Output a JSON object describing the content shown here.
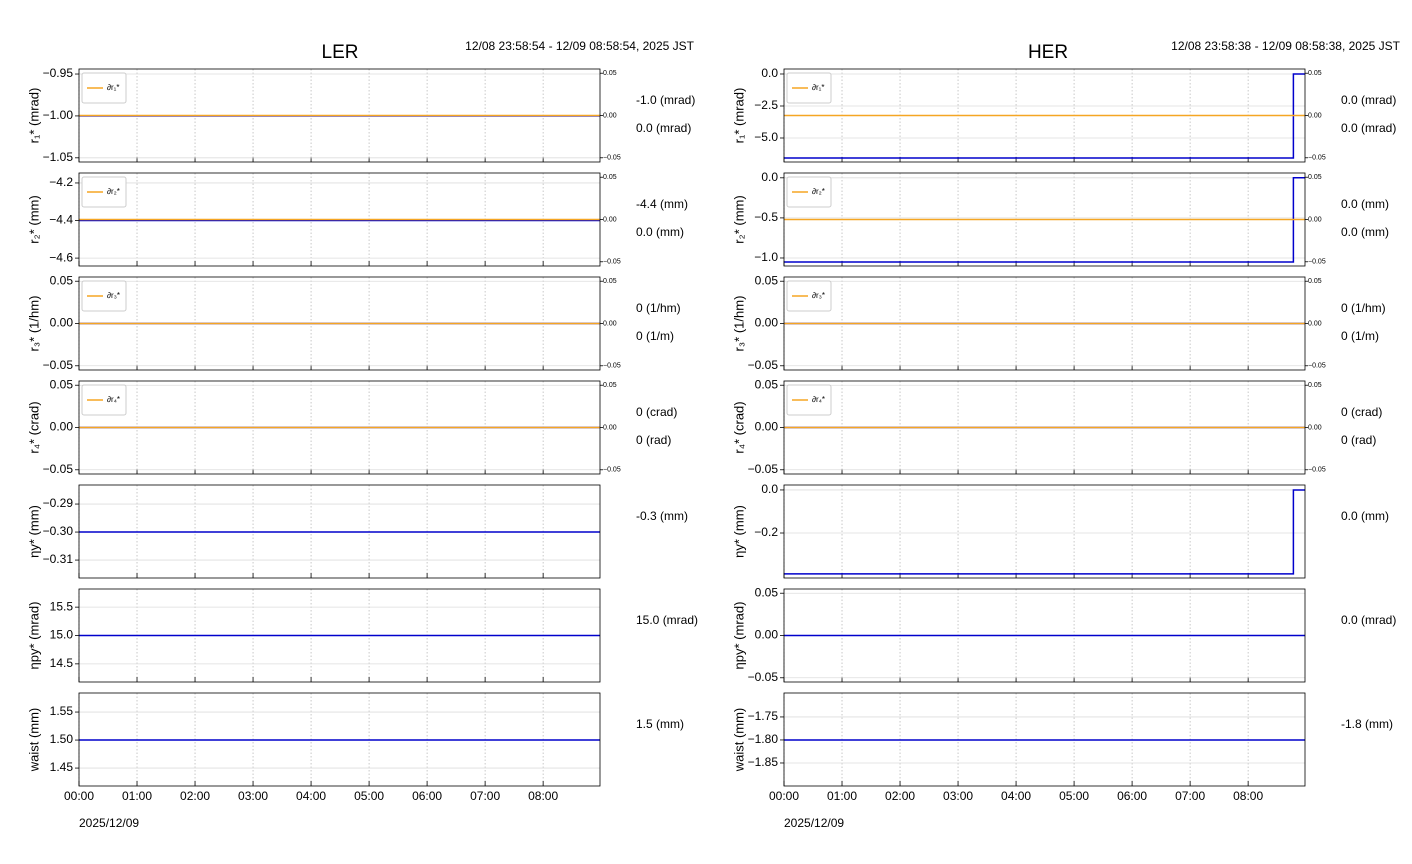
{
  "chart_data": [
    {
      "type": "line",
      "title": "LER",
      "subtitle": "12/08 23:58:54 - 12/09 08:58:54, 2025 JST",
      "xlabel": "2025/12/09",
      "xlim": [
        0,
        8.98
      ],
      "xticks": [
        {
          "value": 0,
          "label": "00:00"
        },
        {
          "value": 1,
          "label": "01:00"
        },
        {
          "value": 2,
          "label": "02:00"
        },
        {
          "value": 3,
          "label": "03:00"
        },
        {
          "value": 4,
          "label": "04:00"
        },
        {
          "value": 5,
          "label": "05:00"
        },
        {
          "value": 6,
          "label": "06:00"
        },
        {
          "value": 7,
          "label": "07:00"
        },
        {
          "value": 8,
          "label": "08:00"
        }
      ],
      "panels": [
        {
          "ylabel": "r₁* (mrad)",
          "ylim": [
            -1.055,
            -0.944
          ],
          "yticks": [
            {
              "value": -0.95,
              "label": "−0.95"
            },
            {
              "value": -1,
              "label": "−1.00"
            },
            {
              "value": -1.05,
              "label": "−1.05"
            }
          ],
          "y2lim": [
            -0.055,
            0.055
          ],
          "y2ticks": [
            0.05,
            {
              "value": 0,
              "label": "0.00"
            },
            {
              "value": -0.05,
              "label": "−0.05"
            }
          ],
          "series": [
            {
              "color": "#0000cc",
              "x": [
                0,
                8.98
              ],
              "values": [
                -1,
                -1
              ]
            },
            {
              "name": "∂r₁*",
              "color": "#f5a623",
              "axis": "y2",
              "x": [
                0,
                8.98
              ],
              "values": [
                0,
                0
              ]
            }
          ],
          "notes": [
            {
              "text": "-1.0 (mrad)",
              "color": "#0000cc"
            },
            {
              "text": "0.0 (mrad)",
              "color": "#f5a623"
            }
          ]
        },
        {
          "ylabel": "r₂* (mm)",
          "ylim": [
            -4.642,
            -4.147
          ],
          "yticks": [
            {
              "value": -4.2,
              "label": "−4.2"
            },
            {
              "value": -4.4,
              "label": "−4.4"
            },
            {
              "value": -4.6,
              "label": "−4.6"
            }
          ],
          "y2lim": [
            -0.055,
            0.055
          ],
          "y2ticks": [
            0.05,
            {
              "value": 0,
              "label": "0.00"
            },
            {
              "value": -0.05,
              "label": "−0.05"
            }
          ],
          "series": [
            {
              "color": "#0000cc",
              "x": [
                0,
                8.98
              ],
              "values": [
                -4.4,
                -4.4
              ]
            },
            {
              "name": "∂r₂*",
              "color": "#f5a623",
              "axis": "y2",
              "x": [
                0,
                8.98
              ],
              "values": [
                0,
                0
              ]
            }
          ],
          "notes": [
            {
              "text": "-4.4 (mm)",
              "color": "#0000cc"
            },
            {
              "text": "0.0 (mm)",
              "color": "#f5a623"
            }
          ]
        },
        {
          "ylabel": "r₃* (1/hm)",
          "ylim": [
            -0.055,
            0.055
          ],
          "yticks": [
            0.05,
            {
              "value": 0,
              "label": "0.00"
            },
            {
              "value": -0.05,
              "label": "−0.05"
            }
          ],
          "y2lim": [
            -0.055,
            0.055
          ],
          "y2ticks": [
            0.05,
            {
              "value": 0,
              "label": "0.00"
            },
            {
              "value": -0.05,
              "label": "−0.05"
            }
          ],
          "series": [
            {
              "color": "#0000cc",
              "x": [
                0,
                8.98
              ],
              "values": [
                0,
                0
              ]
            },
            {
              "name": "∂r₃*",
              "color": "#f5a623",
              "axis": "y2",
              "x": [
                0,
                8.98
              ],
              "values": [
                0,
                0
              ]
            }
          ],
          "notes": [
            {
              "text": "0 (1/hm)",
              "color": "#0000cc"
            },
            {
              "text": "0 (1/m)",
              "color": "#f5a623"
            }
          ]
        },
        {
          "ylabel": "r₄* (crad)",
          "ylim": [
            -0.055,
            0.055
          ],
          "yticks": [
            0.05,
            {
              "value": 0,
              "label": "0.00"
            },
            {
              "value": -0.05,
              "label": "−0.05"
            }
          ],
          "y2lim": [
            -0.055,
            0.055
          ],
          "y2ticks": [
            0.05,
            {
              "value": 0,
              "label": "0.00"
            },
            {
              "value": -0.05,
              "label": "−0.05"
            }
          ],
          "series": [
            {
              "color": "#0000cc",
              "x": [
                0,
                8.98
              ],
              "values": [
                0,
                0
              ]
            },
            {
              "name": "∂r₄*",
              "color": "#f5a623",
              "axis": "y2",
              "x": [
                0,
                8.98
              ],
              "values": [
                0,
                0
              ]
            }
          ],
          "notes": [
            {
              "text": "0 (crad)",
              "color": "#0000cc"
            },
            {
              "text": "0 (rad)",
              "color": "#f5a623"
            }
          ]
        },
        {
          "ylabel": "ηy* (mm)",
          "ylim": [
            -0.3164,
            -0.2832
          ],
          "yticks": [
            {
              "value": -0.29,
              "label": "−0.29"
            },
            {
              "value": -0.3,
              "label": "−0.30"
            },
            {
              "value": -0.31,
              "label": "−0.31"
            }
          ],
          "series": [
            {
              "color": "#0000cc",
              "x": [
                0,
                8.98
              ],
              "values": [
                -0.3,
                -0.3
              ]
            }
          ],
          "notes": [
            {
              "text": "-0.3 (mm)",
              "color": "#0000cc"
            }
          ]
        },
        {
          "ylabel": "ηpy* (mrad)",
          "ylim": [
            14.18,
            15.82
          ],
          "yticks": [
            15.5,
            {
              "value": 15,
              "label": "15.0"
            },
            14.5
          ],
          "series": [
            {
              "color": "#0000cc",
              "x": [
                0,
                8.98
              ],
              "values": [
                15,
                15
              ]
            }
          ],
          "notes": [
            {
              "text": "15.0 (mrad)",
              "color": "#0000cc"
            }
          ]
        },
        {
          "ylabel": "waist (mm)",
          "ylim": [
            1.418,
            1.584
          ],
          "yticks": [
            1.55,
            {
              "value": 1.5,
              "label": "1.50"
            },
            1.45
          ],
          "series": [
            {
              "color": "#0000cc",
              "x": [
                0,
                8.98
              ],
              "values": [
                1.5,
                1.5
              ]
            }
          ],
          "notes": [
            {
              "text": "1.5 (mm)",
              "color": "#0000cc"
            }
          ]
        }
      ]
    },
    {
      "type": "line",
      "title": "HER",
      "subtitle": "12/08 23:58:38 - 12/09 08:58:38, 2025 JST",
      "xlabel": "2025/12/09",
      "xlim": [
        0,
        8.98
      ],
      "xticks": [
        {
          "value": 0,
          "label": "00:00"
        },
        {
          "value": 1,
          "label": "01:00"
        },
        {
          "value": 2,
          "label": "02:00"
        },
        {
          "value": 3,
          "label": "03:00"
        },
        {
          "value": 4,
          "label": "04:00"
        },
        {
          "value": 5,
          "label": "05:00"
        },
        {
          "value": 6,
          "label": "06:00"
        },
        {
          "value": 7,
          "label": "07:00"
        },
        {
          "value": 8,
          "label": "08:00"
        }
      ],
      "panels": [
        {
          "ylabel": "r₁* (mrad)",
          "ylim": [
            -6.875,
            0.39
          ],
          "yticks": [
            {
              "value": 0,
              "label": "0.0"
            },
            {
              "value": -2.5,
              "label": "−2.5"
            },
            {
              "value": -5,
              "label": "−5.0"
            }
          ],
          "y2lim": [
            -0.055,
            0.055
          ],
          "y2ticks": [
            0.05,
            {
              "value": 0,
              "label": "0.00"
            },
            {
              "value": -0.05,
              "label": "−0.05"
            }
          ],
          "series": [
            {
              "color": "#0000cc",
              "x": [
                0,
                8.78,
                8.78,
                8.98
              ],
              "values": [
                -6.56,
                -6.56,
                0,
                0
              ]
            },
            {
              "name": "∂r₁*",
              "color": "#f5a623",
              "axis": "y2",
              "x": [
                0,
                8.98
              ],
              "values": [
                0,
                0
              ]
            }
          ],
          "notes": [
            {
              "text": "0.0 (mrad)",
              "color": "#0000cc"
            },
            {
              "text": "0.0 (mrad)",
              "color": "#f5a623"
            }
          ]
        },
        {
          "ylabel": "r₂* (mm)",
          "ylim": [
            -1.1,
            0.06
          ],
          "yticks": [
            {
              "value": 0,
              "label": "0.0"
            },
            {
              "value": -0.5,
              "label": "−0.5"
            },
            {
              "value": -1,
              "label": "−1.0"
            }
          ],
          "y2lim": [
            -0.055,
            0.055
          ],
          "y2ticks": [
            0.05,
            {
              "value": 0,
              "label": "0.00"
            },
            {
              "value": -0.05,
              "label": "−0.05"
            }
          ],
          "series": [
            {
              "color": "#0000cc",
              "x": [
                0,
                8.78,
                8.78,
                8.98
              ],
              "values": [
                -1.05,
                -1.05,
                0,
                0
              ]
            },
            {
              "name": "∂r₂*",
              "color": "#f5a623",
              "axis": "y2",
              "x": [
                0,
                8.98
              ],
              "values": [
                0,
                0
              ]
            }
          ],
          "notes": [
            {
              "text": "0.0 (mm)",
              "color": "#0000cc"
            },
            {
              "text": "0.0 (mm)",
              "color": "#f5a623"
            }
          ]
        },
        {
          "ylabel": "r₃* (1/hm)",
          "ylim": [
            -0.055,
            0.055
          ],
          "yticks": [
            0.05,
            {
              "value": 0,
              "label": "0.00"
            },
            {
              "value": -0.05,
              "label": "−0.05"
            }
          ],
          "y2lim": [
            -0.055,
            0.055
          ],
          "y2ticks": [
            0.05,
            {
              "value": 0,
              "label": "0.00"
            },
            {
              "value": -0.05,
              "label": "−0.05"
            }
          ],
          "series": [
            {
              "color": "#0000cc",
              "x": [
                0,
                8.98
              ],
              "values": [
                0,
                0
              ]
            },
            {
              "name": "∂r₃*",
              "color": "#f5a623",
              "axis": "y2",
              "x": [
                0,
                8.98
              ],
              "values": [
                0,
                0
              ]
            }
          ],
          "notes": [
            {
              "text": "0 (1/hm)",
              "color": "#0000cc"
            },
            {
              "text": "0 (1/m)",
              "color": "#f5a623"
            }
          ]
        },
        {
          "ylabel": "r₄* (crad)",
          "ylim": [
            -0.055,
            0.055
          ],
          "yticks": [
            0.05,
            {
              "value": 0,
              "label": "0.00"
            },
            {
              "value": -0.05,
              "label": "−0.05"
            }
          ],
          "y2lim": [
            -0.055,
            0.055
          ],
          "y2ticks": [
            0.05,
            {
              "value": 0,
              "label": "0.00"
            },
            {
              "value": -0.05,
              "label": "−0.05"
            }
          ],
          "series": [
            {
              "color": "#0000cc",
              "x": [
                0,
                8.98
              ],
              "values": [
                0,
                0
              ]
            },
            {
              "name": "∂r₄*",
              "color": "#f5a623",
              "axis": "y2",
              "x": [
                0,
                8.98
              ],
              "values": [
                0,
                0
              ]
            }
          ],
          "notes": [
            {
              "text": "0 (crad)",
              "color": "#0000cc"
            },
            {
              "text": "0 (rad)",
              "color": "#f5a623"
            }
          ]
        },
        {
          "ylabel": "ηy* (mm)",
          "ylim": [
            -0.409,
            0.023
          ],
          "yticks": [
            {
              "value": 0,
              "label": "0.0"
            },
            {
              "value": -0.2,
              "label": "−0.2"
            }
          ],
          "series": [
            {
              "color": "#0000cc",
              "x": [
                0,
                8.78,
                8.78,
                8.98
              ],
              "values": [
                -0.39,
                -0.39,
                0,
                0
              ]
            }
          ],
          "notes": [
            {
              "text": "0.0 (mm)",
              "color": "#0000cc"
            }
          ]
        },
        {
          "ylabel": "ηpy* (mrad)",
          "ylim": [
            -0.055,
            0.055
          ],
          "yticks": [
            0.05,
            {
              "value": 0,
              "label": "0.00"
            },
            {
              "value": -0.05,
              "label": "−0.05"
            }
          ],
          "series": [
            {
              "color": "#0000cc",
              "x": [
                0,
                8.98
              ],
              "values": [
                0,
                0
              ]
            }
          ],
          "notes": [
            {
              "text": "0.0 (mrad)",
              "color": "#0000cc"
            }
          ]
        },
        {
          "ylabel": "waist (mm)",
          "ylim": [
            -1.9,
            -1.698
          ],
          "yticks": [
            {
              "value": -1.75,
              "label": "−1.75"
            },
            {
              "value": -1.8,
              "label": "−1.80"
            },
            {
              "value": -1.85,
              "label": "−1.85"
            }
          ],
          "series": [
            {
              "color": "#0000cc",
              "x": [
                0,
                8.98
              ],
              "values": [
                -1.8,
                -1.8
              ]
            }
          ],
          "notes": [
            {
              "text": "-1.8 (mm)",
              "color": "#0000cc"
            }
          ]
        }
      ]
    }
  ]
}
